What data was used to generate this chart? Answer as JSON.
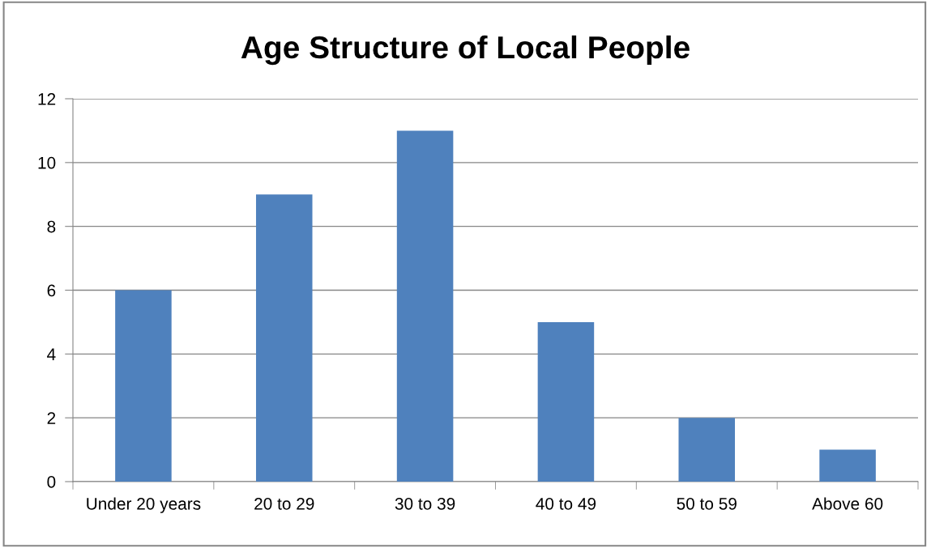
{
  "chart_data": {
    "type": "bar",
    "title": "Age Structure of Local People",
    "categories": [
      "Under 20 years",
      "20 to 29",
      "30 to 39",
      "40 to 49",
      "50 to 59",
      "Above 60"
    ],
    "values": [
      6,
      9,
      11,
      5,
      2,
      1
    ],
    "color": "#4f81bd",
    "ylim": [
      0,
      12
    ],
    "yticks": [
      0,
      2,
      4,
      6,
      8,
      10,
      12
    ],
    "grid": "y",
    "legend": false
  }
}
